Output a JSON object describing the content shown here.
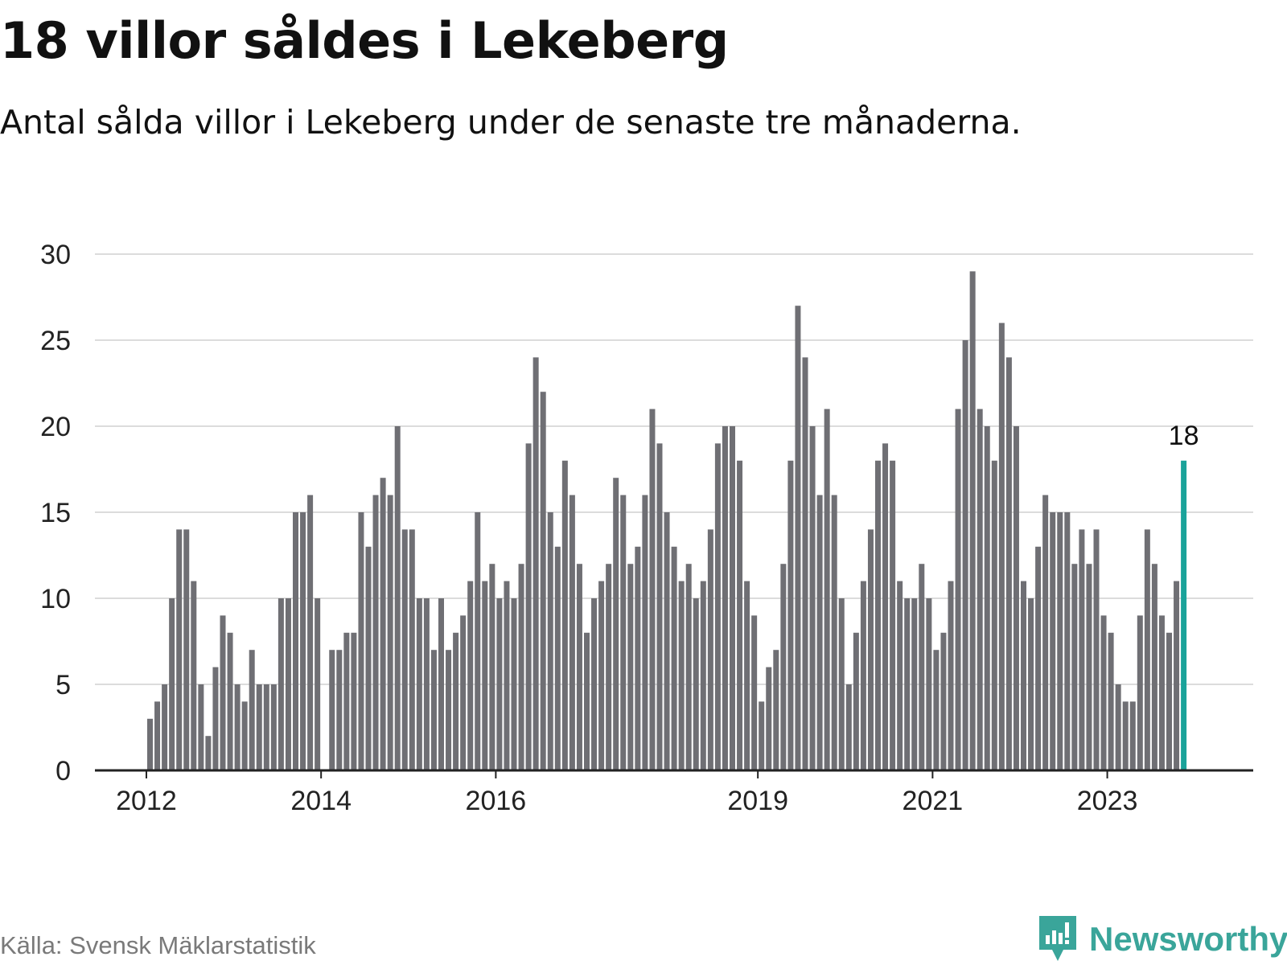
{
  "title": "18 villor såldes i Lekeberg",
  "subtitle": "Antal sålda villor i Lekeberg under de senaste tre månaderna.",
  "source": "Källa: Svensk Mäklarstatistik",
  "brand": {
    "name": "Newsworthy",
    "icon": "newsworthy-logo-icon",
    "color": "#3aa59a"
  },
  "colors": {
    "bar": "#6f6f74",
    "highlight": "#1aa39a",
    "grid": "#dcdcdc",
    "axis": "#222222"
  },
  "chart_data": {
    "type": "bar",
    "title": "18 villor såldes i Lekeberg",
    "xlabel": "",
    "ylabel": "",
    "ylim": [
      0,
      30
    ],
    "yticks": [
      0,
      5,
      10,
      15,
      20,
      25,
      30
    ],
    "xticks": [
      "2012",
      "2014",
      "2016",
      "2019",
      "2021",
      "2023"
    ],
    "grid": true,
    "start": "2012-01",
    "values": [
      3,
      4,
      5,
      10,
      14,
      14,
      11,
      5,
      2,
      6,
      9,
      8,
      5,
      4,
      7,
      5,
      5,
      5,
      10,
      10,
      15,
      15,
      16,
      10,
      0,
      7,
      7,
      8,
      8,
      15,
      13,
      16,
      17,
      16,
      20,
      14,
      14,
      10,
      10,
      7,
      10,
      7,
      8,
      9,
      11,
      15,
      11,
      12,
      10,
      11,
      10,
      12,
      19,
      24,
      22,
      15,
      13,
      18,
      16,
      12,
      8,
      10,
      11,
      12,
      17,
      16,
      12,
      13,
      16,
      21,
      19,
      15,
      13,
      11,
      12,
      10,
      11,
      14,
      19,
      20,
      20,
      18,
      11,
      9,
      4,
      6,
      7,
      12,
      18,
      27,
      24,
      20,
      16,
      21,
      16,
      10,
      5,
      8,
      11,
      14,
      18,
      19,
      18,
      11,
      10,
      10,
      12,
      10,
      7,
      8,
      11,
      21,
      25,
      29,
      21,
      20,
      18,
      26,
      24,
      20,
      11,
      10,
      13,
      16,
      15,
      15,
      15,
      12,
      14,
      12,
      14,
      9,
      8,
      5,
      4,
      4,
      9,
      14,
      12,
      9,
      8,
      11,
      18
    ],
    "highlight_last": true,
    "annotation": "18"
  }
}
